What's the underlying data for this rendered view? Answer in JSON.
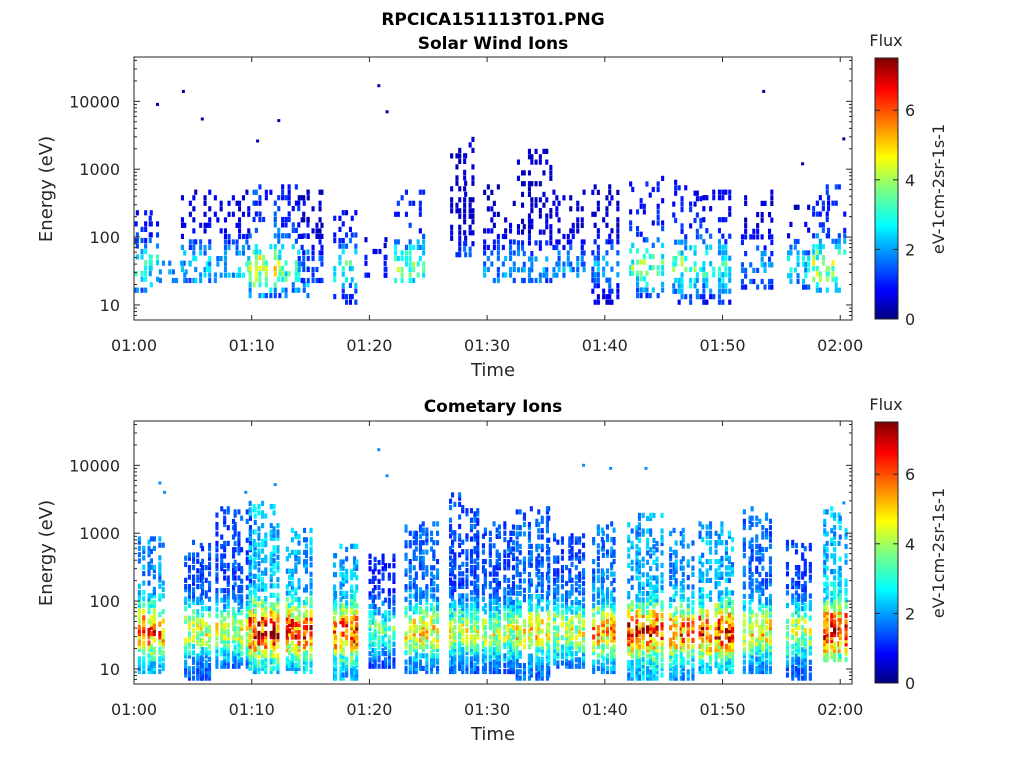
{
  "figure": {
    "title": "RPCICA151113T01.PNG"
  },
  "colors": {
    "colormap": [
      "#00007f",
      "#0000ff",
      "#007fff",
      "#00ffff",
      "#7fff7f",
      "#ffff00",
      "#ff7f00",
      "#ff0000",
      "#7f0000"
    ]
  },
  "chart_data": [
    {
      "type": "heatmap",
      "title": "Solar Wind Ions",
      "xlabel": "Time",
      "ylabel": "Energy (eV)",
      "x_range": [
        "01:00",
        "02:01"
      ],
      "x_ticks": [
        "01:00",
        "01:10",
        "01:20",
        "01:30",
        "01:40",
        "01:50",
        "02:00"
      ],
      "y_scale": "log",
      "y_range": [
        6,
        45000
      ],
      "y_ticks": [
        "10",
        "100",
        "1000",
        "10000"
      ],
      "colorbar": {
        "title": "Flux",
        "label": "eV-1cm-2sr-1s-1",
        "range": [
          0,
          7.5
        ],
        "ticks": [
          "0",
          "2",
          "4",
          "6"
        ]
      },
      "activity": [
        {
          "t": 1.0,
          "e_min": 18,
          "e_max": 300,
          "peak": 3.5
        },
        {
          "t": 3.5,
          "e_min": 25,
          "e_max": 45,
          "peak": 2.5
        },
        {
          "t": 5.5,
          "e_min": 25,
          "e_max": 500,
          "peak": 3.0
        },
        {
          "t": 8.5,
          "e_min": 30,
          "e_max": 500,
          "peak": 3.0
        },
        {
          "t": 11.0,
          "e_min": 15,
          "e_max": 600,
          "peak": 5.0
        },
        {
          "t": 13.5,
          "e_min": 15,
          "e_max": 600,
          "peak": 4.0
        },
        {
          "t": 15.0,
          "e_min": 25,
          "e_max": 500,
          "peak": 2.0
        },
        {
          "t": 18.0,
          "e_min": 12,
          "e_max": 250,
          "peak": 3.5
        },
        {
          "t": 20.5,
          "e_min": 30,
          "e_max": 100,
          "peak": 1.5
        },
        {
          "t": 23.5,
          "e_min": 25,
          "e_max": 500,
          "peak": 4.0
        },
        {
          "t": 28.0,
          "e_min": 60,
          "e_max": 3000,
          "peak": 2.5
        },
        {
          "t": 31.0,
          "e_min": 25,
          "e_max": 600,
          "peak": 2.5
        },
        {
          "t": 34.0,
          "e_min": 25,
          "e_max": 2000,
          "peak": 2.5
        },
        {
          "t": 37.0,
          "e_min": 30,
          "e_max": 500,
          "peak": 2.5
        },
        {
          "t": 40.0,
          "e_min": 12,
          "e_max": 600,
          "peak": 2.5
        },
        {
          "t": 43.5,
          "e_min": 15,
          "e_max": 800,
          "peak": 4.0
        },
        {
          "t": 47.0,
          "e_min": 12,
          "e_max": 700,
          "peak": 4.0
        },
        {
          "t": 49.5,
          "e_min": 12,
          "e_max": 500,
          "peak": 3.5
        },
        {
          "t": 53.0,
          "e_min": 20,
          "e_max": 500,
          "peak": 2.5
        },
        {
          "t": 56.5,
          "e_min": 20,
          "e_max": 300,
          "peak": 3.0
        },
        {
          "t": 59.0,
          "e_min": 18,
          "e_max": 600,
          "peak": 4.5
        }
      ],
      "isolated_points": [
        {
          "t": 2.0,
          "e": 9000
        },
        {
          "t": 4.2,
          "e": 14000
        },
        {
          "t": 5.8,
          "e": 5500
        },
        {
          "t": 10.5,
          "e": 2600
        },
        {
          "t": 12.3,
          "e": 5200
        },
        {
          "t": 20.8,
          "e": 17000
        },
        {
          "t": 21.5,
          "e": 7000
        },
        {
          "t": 53.5,
          "e": 14000
        },
        {
          "t": 56.8,
          "e": 1200
        },
        {
          "t": 60.3,
          "e": 2800
        }
      ]
    },
    {
      "type": "heatmap",
      "title": "Cometary Ions",
      "xlabel": "Time",
      "ylabel": "Energy (eV)",
      "x_range": [
        "01:00",
        "02:01"
      ],
      "x_ticks": [
        "01:00",
        "01:10",
        "01:20",
        "01:30",
        "01:40",
        "01:50",
        "02:00"
      ],
      "y_scale": "log",
      "y_range": [
        6,
        45000
      ],
      "y_ticks": [
        "10",
        "100",
        "1000",
        "10000"
      ],
      "colorbar": {
        "title": "Flux",
        "label": "eV-1cm-2sr-1s-1",
        "range": [
          0,
          7.5
        ],
        "ticks": [
          "0",
          "2",
          "4",
          "6"
        ]
      },
      "activity": [
        {
          "t": 1.5,
          "e_min": 10,
          "e_max": 900,
          "peak": 6.0
        },
        {
          "t": 5.5,
          "e_min": 8,
          "e_max": 800,
          "peak": 4.5
        },
        {
          "t": 8.5,
          "e_min": 12,
          "e_max": 2500,
          "peak": 4.5
        },
        {
          "t": 11.0,
          "e_min": 10,
          "e_max": 3000,
          "peak": 7.0
        },
        {
          "t": 14.0,
          "e_min": 10,
          "e_max": 1200,
          "peak": 6.5
        },
        {
          "t": 18.0,
          "e_min": 8,
          "e_max": 700,
          "peak": 6.5
        },
        {
          "t": 21.0,
          "e_min": 12,
          "e_max": 500,
          "peak": 3.5
        },
        {
          "t": 24.5,
          "e_min": 10,
          "e_max": 1500,
          "peak": 5.0
        },
        {
          "t": 28.0,
          "e_min": 10,
          "e_max": 4000,
          "peak": 4.5
        },
        {
          "t": 31.0,
          "e_min": 10,
          "e_max": 1500,
          "peak": 4.5
        },
        {
          "t": 34.0,
          "e_min": 8,
          "e_max": 2500,
          "peak": 5.0
        },
        {
          "t": 37.0,
          "e_min": 12,
          "e_max": 1000,
          "peak": 4.5
        },
        {
          "t": 40.0,
          "e_min": 10,
          "e_max": 1500,
          "peak": 5.5
        },
        {
          "t": 43.5,
          "e_min": 8,
          "e_max": 2000,
          "peak": 6.5
        },
        {
          "t": 46.5,
          "e_min": 8,
          "e_max": 1200,
          "peak": 6.0
        },
        {
          "t": 49.5,
          "e_min": 10,
          "e_max": 1500,
          "peak": 6.5
        },
        {
          "t": 53.0,
          "e_min": 10,
          "e_max": 2500,
          "peak": 5.0
        },
        {
          "t": 56.5,
          "e_min": 8,
          "e_max": 800,
          "peak": 4.5
        },
        {
          "t": 59.5,
          "e_min": 15,
          "e_max": 2500,
          "peak": 7.0
        }
      ],
      "isolated_points": [
        {
          "t": 2.2,
          "e": 5500
        },
        {
          "t": 2.6,
          "e": 4000
        },
        {
          "t": 9.5,
          "e": 4000
        },
        {
          "t": 12.0,
          "e": 5200
        },
        {
          "t": 20.8,
          "e": 17000
        },
        {
          "t": 21.5,
          "e": 7000
        },
        {
          "t": 38.2,
          "e": 10000
        },
        {
          "t": 40.5,
          "e": 9000
        },
        {
          "t": 43.5,
          "e": 9000
        },
        {
          "t": 60.3,
          "e": 2800
        }
      ]
    }
  ]
}
